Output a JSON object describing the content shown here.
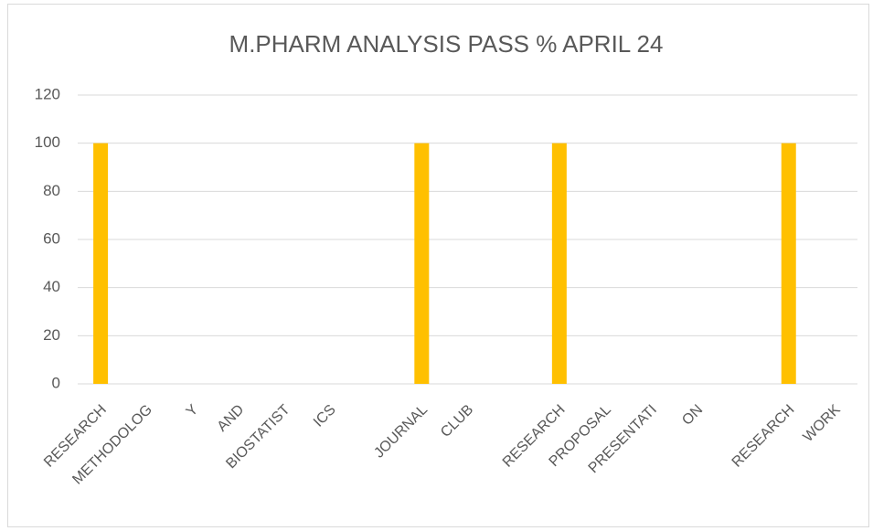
{
  "chart_data": {
    "type": "bar",
    "title": "M.PHARM ANALYSIS PASS % APRIL 24",
    "categories": [
      "RESEARCH",
      "METHODOLOG",
      "Y",
      "AND",
      "BIOSTATIST",
      "ICS",
      null,
      "JOURNAL",
      "CLUB",
      null,
      "RESEARCH",
      "PROPOSAL",
      "PRESENTATI",
      "ON",
      null,
      "RESEARCH",
      "WORK"
    ],
    "values": [
      100,
      null,
      null,
      null,
      null,
      null,
      null,
      100,
      null,
      null,
      100,
      null,
      null,
      null,
      null,
      100,
      null
    ],
    "color": "#ffc000",
    "ylim": [
      0,
      120
    ],
    "yticks": [
      0,
      20,
      40,
      60,
      80,
      100,
      120
    ],
    "grid": true
  }
}
